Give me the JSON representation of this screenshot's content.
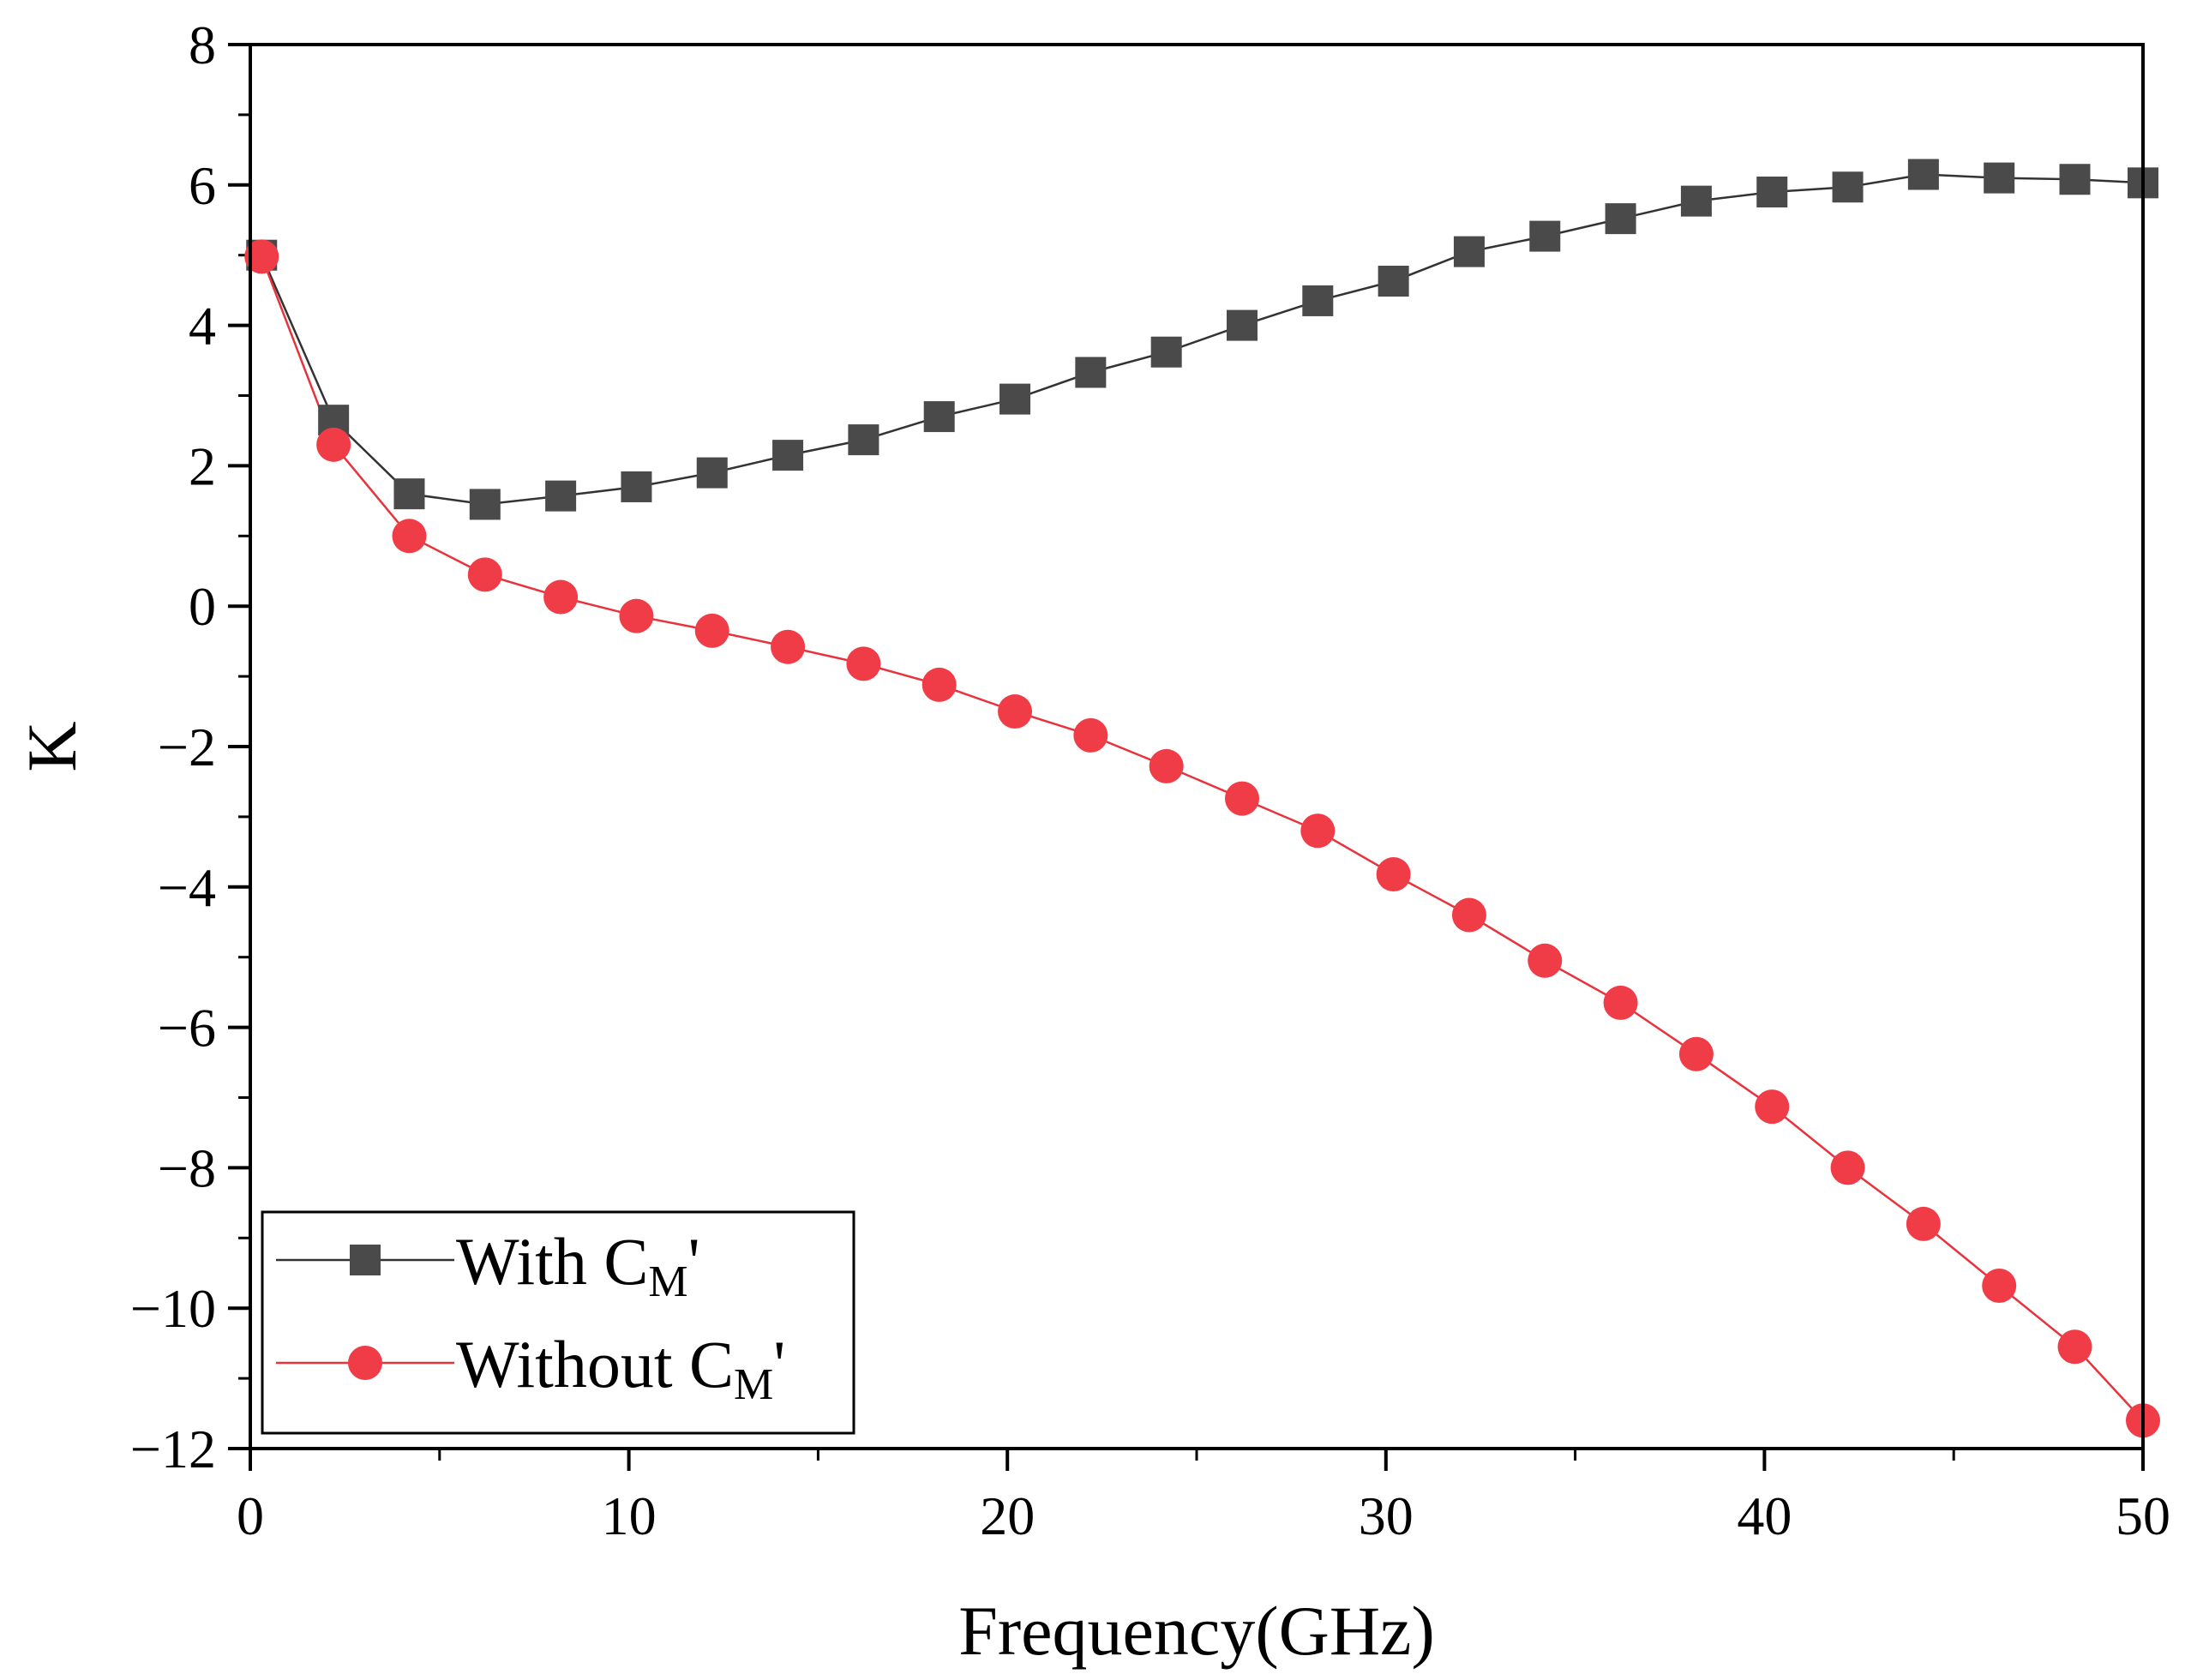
{
  "chart_data": {
    "type": "line",
    "xlabel": "Frequency(GHz)",
    "ylabel": "K",
    "xlim": [
      0,
      50
    ],
    "ylim": [
      -12,
      8
    ],
    "x_major_ticks": [
      0,
      10,
      20,
      30,
      40,
      50
    ],
    "x_minor_ticks": [
      5,
      15,
      25,
      35,
      45
    ],
    "y_major_ticks": [
      -12,
      -10,
      -8,
      -6,
      -4,
      -2,
      0,
      2,
      4,
      6,
      8
    ],
    "y_tick_labels": [
      "−12",
      "−10",
      "−8",
      "−6",
      "−4",
      "−2",
      "0",
      "2",
      "4",
      "6",
      "8"
    ],
    "legend_position": "bottom-left",
    "series": [
      {
        "name": "With C",
        "name_sub": "M",
        "name_suffix": "'",
        "marker": "square",
        "line_color": "#333333",
        "marker_color": "#4a4a4a",
        "x": [
          0.3,
          2.2,
          4.2,
          6.2,
          8.2,
          10.2,
          12.2,
          14.2,
          16.2,
          18.2,
          20.2,
          22.2,
          24.2,
          26.2,
          28.2,
          30.2,
          32.2,
          34.2,
          36.2,
          38.2,
          40.2,
          42.2,
          44.2,
          46.2,
          48.2,
          50.0
        ],
        "y": [
          5.0,
          2.65,
          1.6,
          1.45,
          1.57,
          1.7,
          1.9,
          2.15,
          2.37,
          2.7,
          2.95,
          3.33,
          3.62,
          4.0,
          4.35,
          4.63,
          5.05,
          5.27,
          5.52,
          5.77,
          5.9,
          5.97,
          6.15,
          6.1,
          6.08,
          6.03
        ]
      },
      {
        "name": "Without C",
        "name_sub": "M",
        "name_suffix": "'",
        "marker": "circle",
        "line_color": "#e8323c",
        "marker_color": "#f03c46",
        "x": [
          0.3,
          2.2,
          4.2,
          6.2,
          8.2,
          10.2,
          12.2,
          14.2,
          16.2,
          18.2,
          20.2,
          22.2,
          24.2,
          26.2,
          28.2,
          30.2,
          32.2,
          34.2,
          36.2,
          38.2,
          40.2,
          42.2,
          44.2,
          46.2,
          48.2,
          50.0
        ],
        "y": [
          4.98,
          2.3,
          1.0,
          0.45,
          0.13,
          -0.14,
          -0.35,
          -0.58,
          -0.82,
          -1.12,
          -1.5,
          -1.84,
          -2.28,
          -2.74,
          -3.2,
          -3.82,
          -4.4,
          -5.05,
          -5.65,
          -6.38,
          -7.13,
          -8.0,
          -8.8,
          -9.68,
          -10.55,
          -11.6
        ]
      }
    ]
  }
}
